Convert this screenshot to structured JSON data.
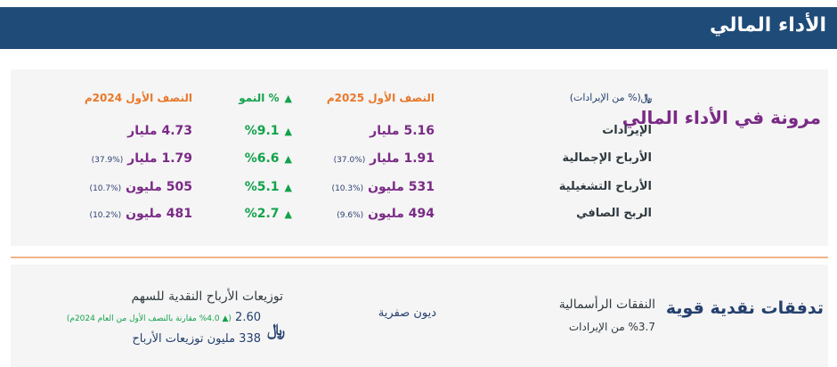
{
  "header": {
    "title": "الأداء المالي"
  },
  "performance": {
    "title": "مرونة في الأداء المالي",
    "unit_note": "(% من الإيرادات)",
    "currency_icon": "saudi-riyal-icon",
    "col_h1_2025": "النصف الأول 2025م",
    "col_growth": "% النمو",
    "col_h1_2024": "النصف الأول 2024م",
    "rows": [
      {
        "label": "الإيرادات",
        "h1_2025": "5.16 مليار",
        "h1_2025_pct": "",
        "growth": "%9.1",
        "h1_2024": "4.73 مليار",
        "h1_2024_pct": ""
      },
      {
        "label": "الأرباح الإجمالية",
        "h1_2025": "1.91 مليار",
        "h1_2025_pct": "(%37.0)",
        "growth": "%6.6",
        "h1_2024": "1.79 مليار",
        "h1_2024_pct": "(%37.9)"
      },
      {
        "label": "الأرباح التشغيلية",
        "h1_2025": "531 مليون",
        "h1_2025_pct": "(%10.3)",
        "growth": "%5.1",
        "h1_2024": "505 مليون",
        "h1_2024_pct": "(%10.7)"
      },
      {
        "label": "الربح الصافي",
        "h1_2025": "494 مليون",
        "h1_2025_pct": "(%9.6)",
        "growth": "%2.7",
        "h1_2024": "481 مليون",
        "h1_2024_pct": "(%10.2)"
      }
    ]
  },
  "cashflow": {
    "title": "تدفقات نقدية قوية",
    "capex_title": "النفقات الرأسمالية",
    "capex_value": "%3.7 من الإيرادات",
    "debt": "ديون صفرية",
    "dividend_title": "توزيعات الأرباح النقدية للسهم",
    "dividend_value": "2.60",
    "dividend_growth": "(▲ %4.0 مقارنة بالنصف الأول من العام 2024م)",
    "dividend_total": "338 مليون توزيعات الأرباح"
  },
  "colors": {
    "header": "#1f4b78",
    "purple": "#7a2a86",
    "orange": "#e8782a",
    "green": "#12a24b",
    "navy": "#24406e"
  }
}
